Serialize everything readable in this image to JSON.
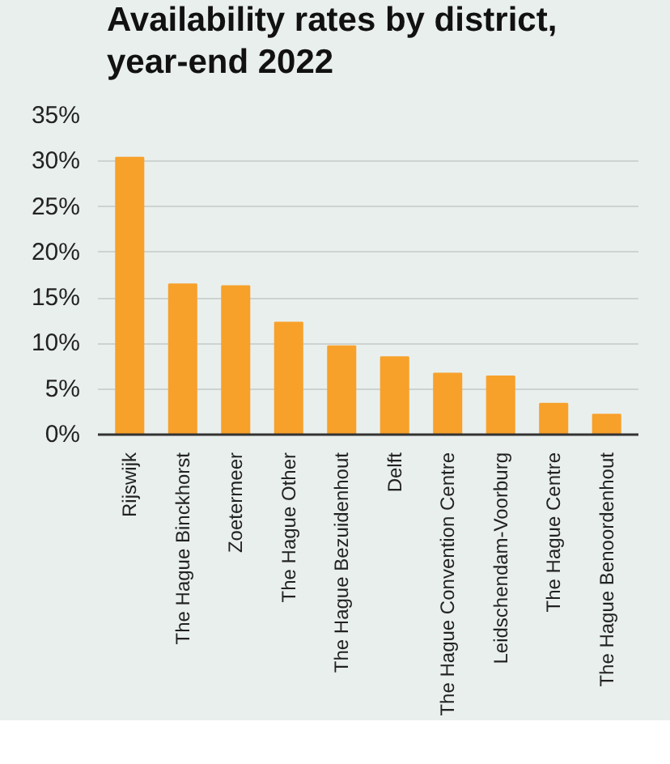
{
  "chart_data": {
    "type": "bar",
    "title": "Availability rates by district, year-end 2022",
    "categories": [
      "Rijswijk",
      "The Hague Binckhorst",
      "Zoetermeer",
      "The Hague Other",
      "The Hague Bezuidenhout",
      "Delft",
      "The Hague Convention Centre",
      "Leidschendam-Voorburg",
      "The Hague Centre",
      "The Hague Benoordenhout"
    ],
    "values": [
      30.4,
      16.5,
      16.3,
      12.3,
      9.7,
      8.5,
      6.7,
      6.4,
      3.4,
      2.2
    ],
    "color": "#f7a12b",
    "ylim": [
      0,
      35
    ],
    "yticks": [
      {
        "value": 0,
        "label": "0%"
      },
      {
        "value": 5,
        "label": "5%"
      },
      {
        "value": 10,
        "label": "10%"
      },
      {
        "value": 15,
        "label": "15%"
      },
      {
        "value": 20,
        "label": "20%"
      },
      {
        "value": 25,
        "label": "25%"
      },
      {
        "value": 30,
        "label": "30%"
      },
      {
        "value": 35,
        "label": "35%"
      }
    ],
    "grid": "y"
  }
}
